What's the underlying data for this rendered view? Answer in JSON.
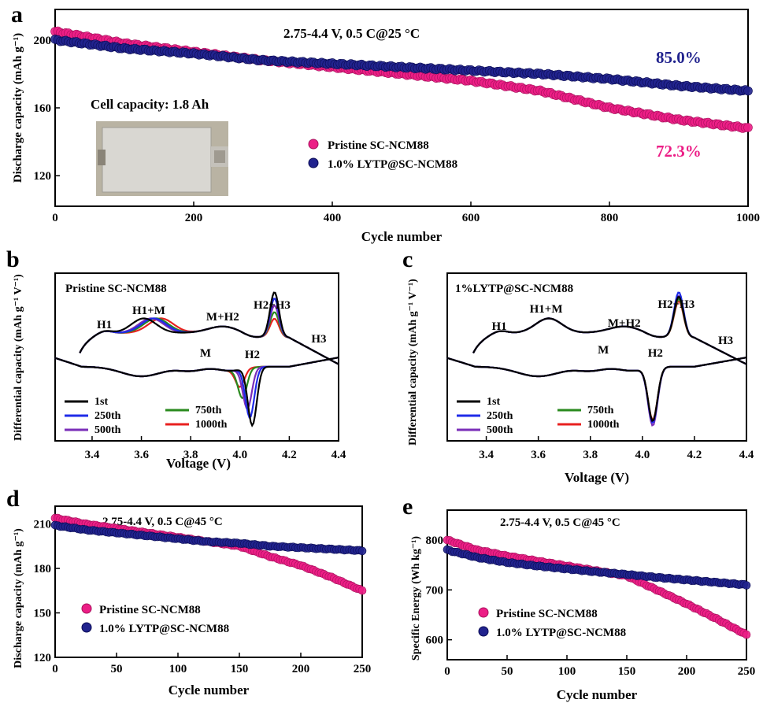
{
  "colors": {
    "pink": "#ec1e86",
    "navy": "#21238e",
    "black": "#000000",
    "blue": "#1f2be8",
    "purple": "#7a2eb8",
    "green": "#2a8a1e",
    "red": "#e8201f"
  },
  "panels": {
    "a": {
      "letter": "a",
      "condition": "2.75-4.4 V, 0.5 C@25 °C",
      "cell_capacity": "Cell capacity: 1.8 Ah",
      "retention_navy": "85.0%",
      "retention_pink": "72.3%",
      "xlabel": "Cycle number",
      "ylabel": "Discharge capacity (mAh g⁻¹)",
      "xticks": [
        "0",
        "200",
        "400",
        "600",
        "800",
        "1000"
      ],
      "yticks": [
        "120",
        "160",
        "200"
      ],
      "legend": [
        "Pristine SC-NCM88",
        "1.0% LYTP@SC-NCM88"
      ]
    },
    "b": {
      "letter": "b",
      "sample": "Pristine SC-NCM88",
      "xlabel": "Voltage (V)",
      "ylabel": "Differential capacity (mAh g⁻¹ V⁻¹)",
      "xticks": [
        "3.4",
        "3.6",
        "3.8",
        "4.0",
        "4.2",
        "4.4"
      ],
      "peaks": [
        "H1",
        "H1+M",
        "M",
        "M+H2",
        "H2",
        "H2+H3",
        "H3"
      ],
      "legend": [
        "1st",
        "250th",
        "500th",
        "750th",
        "1000th"
      ]
    },
    "c": {
      "letter": "c",
      "sample": "1%LYTP@SC-NCM88",
      "xlabel": "Voltage (V)",
      "ylabel": "Differential capacity (mAh g⁻¹ V⁻¹)",
      "xticks": [
        "3.4",
        "3.6",
        "3.8",
        "4.0",
        "4.2",
        "4.4"
      ],
      "peaks": [
        "H1",
        "H1+M",
        "M",
        "M+H2",
        "H2",
        "H2+H3",
        "H3"
      ],
      "legend": [
        "1st",
        "250th",
        "500th",
        "750th",
        "1000th"
      ]
    },
    "d": {
      "letter": "d",
      "condition": "2.75-4.4 V, 0.5 C@45 °C",
      "xlabel": "Cycle number",
      "ylabel": "Discharge capacity (mAh g⁻¹)",
      "xticks": [
        "0",
        "50",
        "100",
        "150",
        "200",
        "250"
      ],
      "yticks": [
        "120",
        "150",
        "180",
        "210"
      ],
      "legend": [
        "Pristine SC-NCM88",
        "1.0% LYTP@SC-NCM88"
      ]
    },
    "e": {
      "letter": "e",
      "condition": "2.75-4.4 V, 0.5 C@45 °C",
      "xlabel": "Cycle number",
      "ylabel": "Specific Energy (Wh kg⁻¹)",
      "xticks": [
        "0",
        "50",
        "100",
        "150",
        "200",
        "250"
      ],
      "yticks": [
        "600",
        "700",
        "800"
      ],
      "legend": [
        "Pristine SC-NCM88",
        "1.0% LYTP@SC-NCM88"
      ]
    }
  },
  "chart_data": [
    {
      "id": "a",
      "type": "scatter",
      "title": "2.75-4.4 V, 0.5 C@25 °C",
      "xlabel": "Cycle number",
      "ylabel": "Discharge capacity (mAh g⁻¹)",
      "xlim": [
        0,
        1000
      ],
      "ylim": [
        102,
        218
      ],
      "series": [
        {
          "name": "Pristine SC-NCM88",
          "color": "#ec1e86",
          "points": [
            [
              0,
              205
            ],
            [
              100,
              198
            ],
            [
              200,
              193
            ],
            [
              300,
              188
            ],
            [
              400,
              184
            ],
            [
              500,
              180
            ],
            [
              600,
              176
            ],
            [
              700,
              170
            ],
            [
              800,
              160
            ],
            [
              900,
              153
            ],
            [
              1000,
              148
            ]
          ]
        },
        {
          "name": "1.0% LYTP@SC-NCM88",
          "color": "#21238e",
          "points": [
            [
              0,
              200
            ],
            [
              100,
              195
            ],
            [
              200,
              192
            ],
            [
              300,
              188
            ],
            [
              400,
              186
            ],
            [
              500,
              184
            ],
            [
              600,
              182
            ],
            [
              700,
              180
            ],
            [
              800,
              177
            ],
            [
              900,
              173
            ],
            [
              1000,
              170
            ]
          ]
        }
      ],
      "annotations": [
        "85.0%",
        "72.3%",
        "Cell capacity: 1.8 Ah"
      ]
    },
    {
      "id": "b",
      "type": "line",
      "title": "Pristine SC-NCM88",
      "xlabel": "Voltage (V)",
      "ylabel": "Differential capacity (mAh g⁻¹ V⁻¹)",
      "xlim": [
        3.25,
        4.4
      ],
      "series_names": [
        "1st",
        "250th",
        "500th",
        "750th",
        "1000th"
      ],
      "charge_peaks": {
        "H1+M_V": [
          3.61,
          3.65,
          3.64,
          3.66,
          3.68
        ],
        "H2+H3_V": 4.14,
        "H2+H3_rel_height": [
          1.0,
          0.86,
          0.7,
          0.55,
          0.4
        ]
      },
      "discharge_peaks": {
        "H2_V": [
          4.05,
          4.04,
          4.03,
          4.01,
          4.0
        ],
        "H2_rel_depth": [
          1.0,
          0.86,
          0.7,
          0.5,
          0.3
        ]
      }
    },
    {
      "id": "c",
      "type": "line",
      "title": "1%LYTP@SC-NCM88",
      "xlabel": "Voltage (V)",
      "ylabel": "Differential capacity (mAh g⁻¹ V⁻¹)",
      "xlim": [
        3.25,
        4.4
      ],
      "series_names": [
        "1st",
        "250th",
        "500th",
        "750th",
        "1000th"
      ],
      "charge_peaks": {
        "H1+M_V": 3.64,
        "H2+H3_V": 4.14,
        "H2+H3_rel_height": [
          0.9,
          1.0,
          0.92,
          0.85,
          0.8
        ]
      },
      "discharge_peaks": {
        "H2_V": 4.04,
        "H2_rel_depth": [
          0.92,
          0.95,
          1.0,
          0.92,
          0.9
        ]
      }
    },
    {
      "id": "d",
      "type": "scatter",
      "title": "2.75-4.4 V, 0.5 C@45 °C",
      "xlabel": "Cycle number",
      "ylabel": "Discharge capacity (mAh g⁻¹)",
      "xlim": [
        0,
        250
      ],
      "ylim": [
        120,
        222
      ],
      "series": [
        {
          "name": "Pristine SC-NCM88",
          "color": "#ec1e86",
          "points": [
            [
              0,
              214
            ],
            [
              25,
              210
            ],
            [
              50,
              207
            ],
            [
              75,
              204
            ],
            [
              100,
              201
            ],
            [
              125,
              198
            ],
            [
              150,
              195
            ],
            [
              175,
              188
            ],
            [
              200,
              182
            ],
            [
              225,
              174
            ],
            [
              250,
              165
            ]
          ]
        },
        {
          "name": "1.0% LYTP@SC-NCM88",
          "color": "#21238e",
          "points": [
            [
              0,
              209
            ],
            [
              25,
              206
            ],
            [
              50,
              204
            ],
            [
              75,
              202
            ],
            [
              100,
              200
            ],
            [
              125,
              198
            ],
            [
              150,
              197
            ],
            [
              175,
              195
            ],
            [
              200,
              194
            ],
            [
              225,
              193
            ],
            [
              250,
              192
            ]
          ]
        }
      ]
    },
    {
      "id": "e",
      "type": "scatter",
      "title": "2.75-4.4 V, 0.5 C@45 °C",
      "xlabel": "Cycle number",
      "ylabel": "Specific Energy (Wh kg⁻¹)",
      "xlim": [
        0,
        250
      ],
      "ylim": [
        560,
        860
      ],
      "series": [
        {
          "name": "Pristine SC-NCM88",
          "color": "#ec1e86",
          "points": [
            [
              0,
              800
            ],
            [
              25,
              780
            ],
            [
              50,
              768
            ],
            [
              75,
              758
            ],
            [
              100,
              748
            ],
            [
              125,
              738
            ],
            [
              150,
              728
            ],
            [
              175,
              700
            ],
            [
              200,
              672
            ],
            [
              225,
              642
            ],
            [
              250,
              610
            ]
          ]
        },
        {
          "name": "1.0% LYTP@SC-NCM88",
          "color": "#21238e",
          "points": [
            [
              0,
              780
            ],
            [
              25,
              765
            ],
            [
              50,
              755
            ],
            [
              75,
              748
            ],
            [
              100,
              742
            ],
            [
              125,
              736
            ],
            [
              150,
              731
            ],
            [
              175,
              725
            ],
            [
              200,
              720
            ],
            [
              225,
              715
            ],
            [
              250,
              710
            ]
          ]
        }
      ]
    }
  ]
}
